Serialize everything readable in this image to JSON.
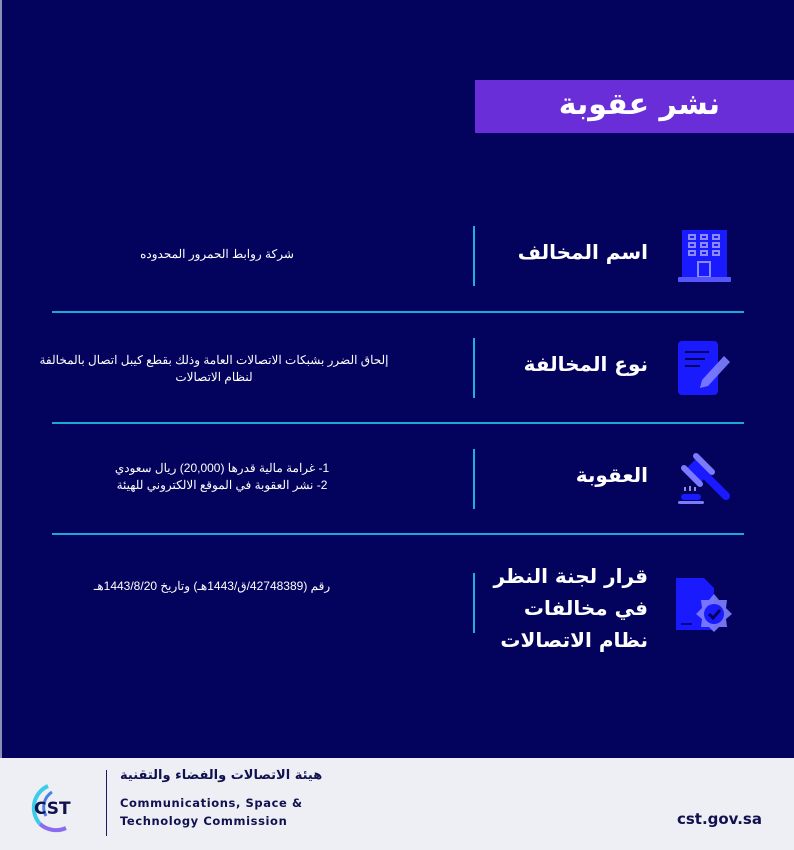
{
  "title": "نشر عقوبة",
  "rows": [
    {
      "label": "اسم المخالف",
      "value": "شركة روابط الحمرور المحدوده",
      "icon": "building-icon"
    },
    {
      "label": "نوع المخالفة",
      "value": "إلحاق الضرر بشبكات الاتصالات العامة وذلك بقطع كيبل اتصال بالمخالفة لنظام الاتصالات",
      "icon": "document-pen-icon"
    },
    {
      "label": "العقوبة",
      "value_lines": [
        "1- غرامة مالية قدرها (20,000) ريال سعودي",
        "2- نشر العقوبة في الموقع الالكتروني للهيئة"
      ],
      "icon": "gavel-icon"
    },
    {
      "label_lines": [
        "قرار لجنة النظر",
        "في مخالفات",
        "نظام الاتصالات"
      ],
      "value": "رقم (42748389/ق/1443هـ) وتاريخ 1443/8/20هـ",
      "icon": "certified-document-icon"
    }
  ],
  "footer": {
    "logo_text": "CST",
    "arabic_name": "هيئة الاتصالات والفضاء والتقنية",
    "english_name_line1": "Communications, Space &",
    "english_name_line2": "Technology Commission",
    "website": "cst.gov.sa"
  },
  "colors": {
    "background": "#03035e",
    "title_bar": "#6a2ed8",
    "accent_line": "#1aa8d8",
    "icon_blue": "#1a1aff",
    "icon_light": "#7b7bff",
    "footer_bg": "#eeeff5"
  }
}
